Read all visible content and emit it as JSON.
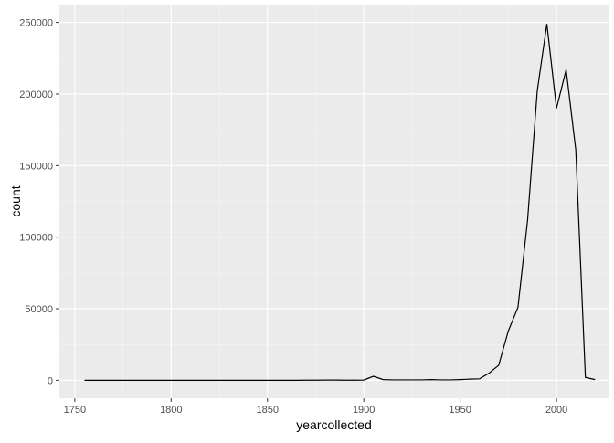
{
  "chart_data": {
    "type": "line",
    "title": "",
    "xlabel": "yearcollected",
    "ylabel": "count",
    "xlim": [
      1742,
      2027
    ],
    "ylim": [
      -12500,
      262500
    ],
    "x_ticks": [
      1750,
      1800,
      1850,
      1900,
      1950,
      2000
    ],
    "x_minor_ticks": [
      1775,
      1825,
      1875,
      1925,
      1975
    ],
    "y_ticks": [
      0,
      50000,
      100000,
      150000,
      200000,
      250000
    ],
    "y_tick_labels": [
      "0",
      "50000",
      "100000",
      "150000",
      "200000",
      "250000"
    ],
    "y_minor_ticks": [
      25000,
      75000,
      125000,
      175000,
      225000
    ],
    "grid": true,
    "legend": "none",
    "colors": {
      "panel_background": "#ebebeb",
      "grid_major": "#ffffff",
      "grid_minor": "#f5f5f5",
      "line": "#000000",
      "tick_label": "#4d4d4d",
      "axis_title": "#000000"
    },
    "series": [
      {
        "x": [
          1755,
          1760,
          1765,
          1770,
          1775,
          1780,
          1785,
          1790,
          1795,
          1800,
          1805,
          1810,
          1815,
          1820,
          1825,
          1830,
          1835,
          1840,
          1845,
          1850,
          1855,
          1860,
          1865,
          1870,
          1875,
          1880,
          1885,
          1890,
          1895,
          1900,
          1905,
          1910,
          1915,
          1920,
          1925,
          1930,
          1935,
          1940,
          1945,
          1950,
          1955,
          1960,
          1965,
          1970,
          1975,
          1980,
          1985,
          1990,
          1995,
          2000,
          2005,
          2010,
          2015,
          2020
        ],
        "y": [
          0,
          0,
          0,
          0,
          0,
          0,
          0,
          0,
          0,
          0,
          0,
          0,
          0,
          0,
          0,
          0,
          0,
          0,
          0,
          0,
          0,
          0,
          0,
          100,
          100,
          200,
          200,
          100,
          100,
          200,
          2800,
          500,
          300,
          300,
          300,
          300,
          500,
          300,
          300,
          500,
          800,
          1000,
          5000,
          10500,
          34500,
          51000,
          112000,
          202000,
          249000,
          190000,
          217000,
          161000,
          2000,
          500
        ]
      }
    ]
  }
}
